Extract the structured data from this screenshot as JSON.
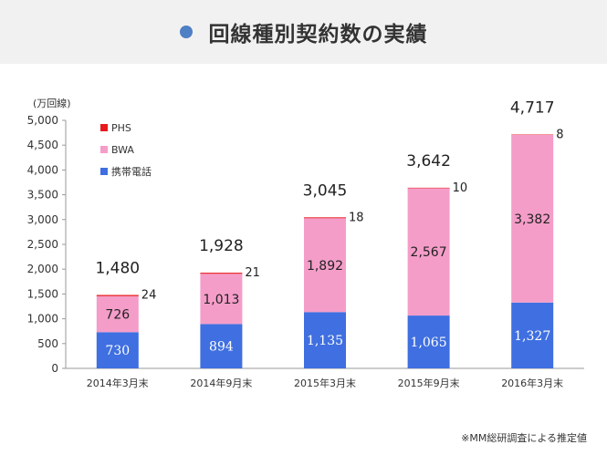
{
  "title": "回線種別契約数の実績",
  "footnote": "※MM総研調査による推定値",
  "colors": {
    "phs": "#e8191d",
    "bwa": "#f59dc9",
    "mobile": "#3f6fe0",
    "header_bg": "#f1f1f1",
    "title_dot": "#4f7fc4"
  },
  "chart_data": {
    "type": "bar",
    "stacked": true,
    "ylabel": "(万回線)",
    "ylim": [
      0,
      5000
    ],
    "yticks": [
      "0",
      "500",
      "1,000",
      "1,500",
      "2,000",
      "2,500",
      "3,000",
      "3,500",
      "4,000",
      "4,500",
      "5,000"
    ],
    "categories": [
      "2014年3月末",
      "2014年9月末",
      "2015年3月末",
      "2015年9月末",
      "2016年3月末"
    ],
    "series": [
      {
        "name": "携帯電話",
        "color": "#3f6fe0",
        "values": [
          730,
          894,
          1135,
          1065,
          1327
        ],
        "labels": [
          "730",
          "894",
          "1,135",
          "1,065",
          "1,327"
        ]
      },
      {
        "name": "BWA",
        "color": "#f59dc9",
        "values": [
          726,
          1013,
          1892,
          2567,
          3382
        ],
        "labels": [
          "726",
          "1,013",
          "1,892",
          "2,567",
          "3,382"
        ]
      },
      {
        "name": "PHS",
        "color": "#e8191d",
        "values": [
          24,
          21,
          18,
          10,
          8
        ],
        "labels": [
          "24",
          "21",
          "18",
          "10",
          "8"
        ]
      }
    ],
    "totals": [
      1480,
      1928,
      3045,
      3642,
      4717
    ],
    "total_labels": [
      "1,480",
      "1,928",
      "3,045",
      "3,642",
      "4,717"
    ],
    "legend": [
      "PHS",
      "BWA",
      "携帯電話"
    ],
    "legend_position": "top-left",
    "grid": false
  }
}
